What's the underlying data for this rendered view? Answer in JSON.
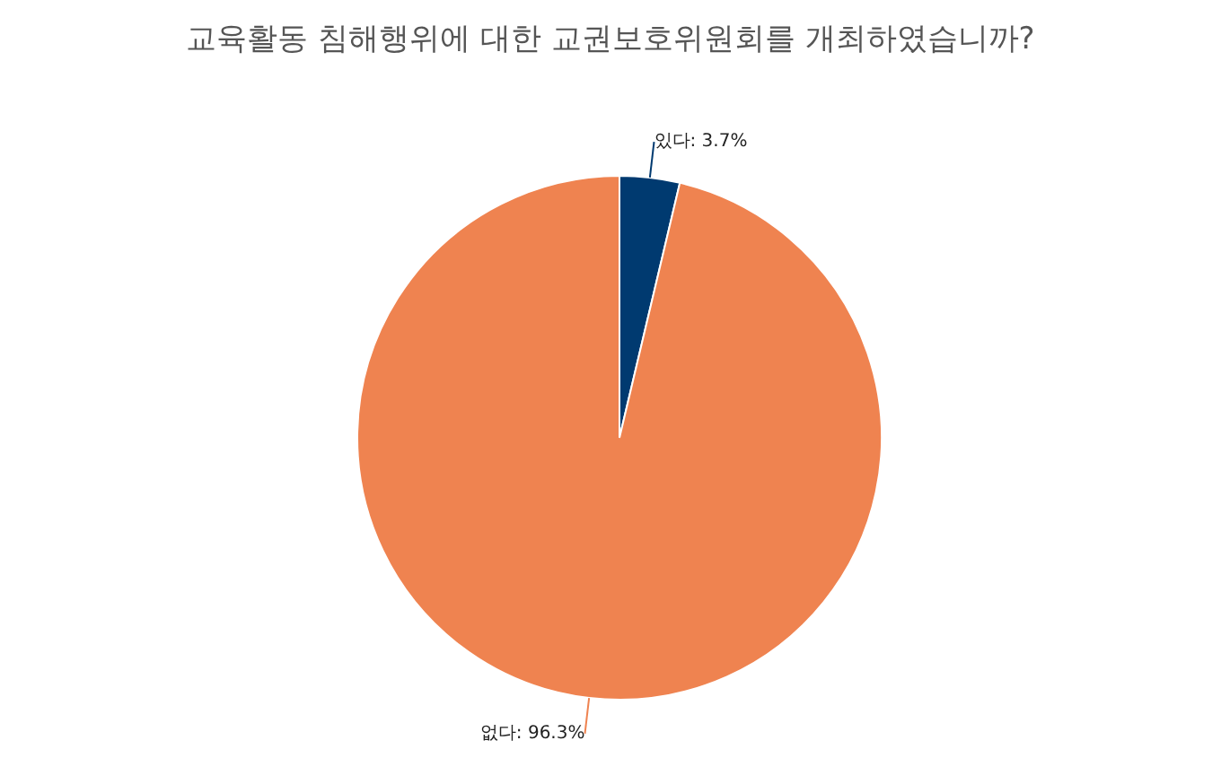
{
  "chart_data": {
    "type": "pie",
    "title": "교육활동 침해행위에 대한 교권보호위원회를 개최하였습니까?",
    "categories": [
      "있다",
      "없다"
    ],
    "values": [
      3.7,
      96.3
    ],
    "colors": [
      "#003a70",
      "#ef8350"
    ],
    "value_labels": [
      "3.7%",
      "96.3%"
    ],
    "legend": false
  }
}
